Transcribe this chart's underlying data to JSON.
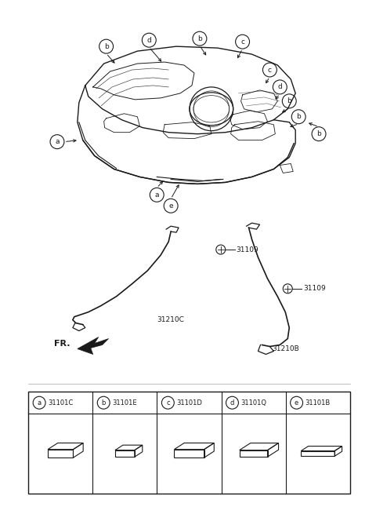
{
  "bg_color": "#ffffff",
  "line_color": "#1a1a1a",
  "fig_width": 4.8,
  "fig_height": 6.55,
  "parts_table": [
    {
      "label": "a",
      "part_num": "31101C",
      "pw": 0.068,
      "pd": 0.038,
      "ph": 0.022
    },
    {
      "label": "b",
      "part_num": "31101E",
      "pw": 0.052,
      "pd": 0.03,
      "ph": 0.018
    },
    {
      "label": "c",
      "part_num": "31101D",
      "pw": 0.08,
      "pd": 0.038,
      "ph": 0.022
    },
    {
      "label": "d",
      "part_num": "31101Q",
      "pw": 0.075,
      "pd": 0.042,
      "ph": 0.018
    },
    {
      "label": "e",
      "part_num": "31101B",
      "pw": 0.09,
      "pd": 0.028,
      "ph": 0.014
    }
  ]
}
